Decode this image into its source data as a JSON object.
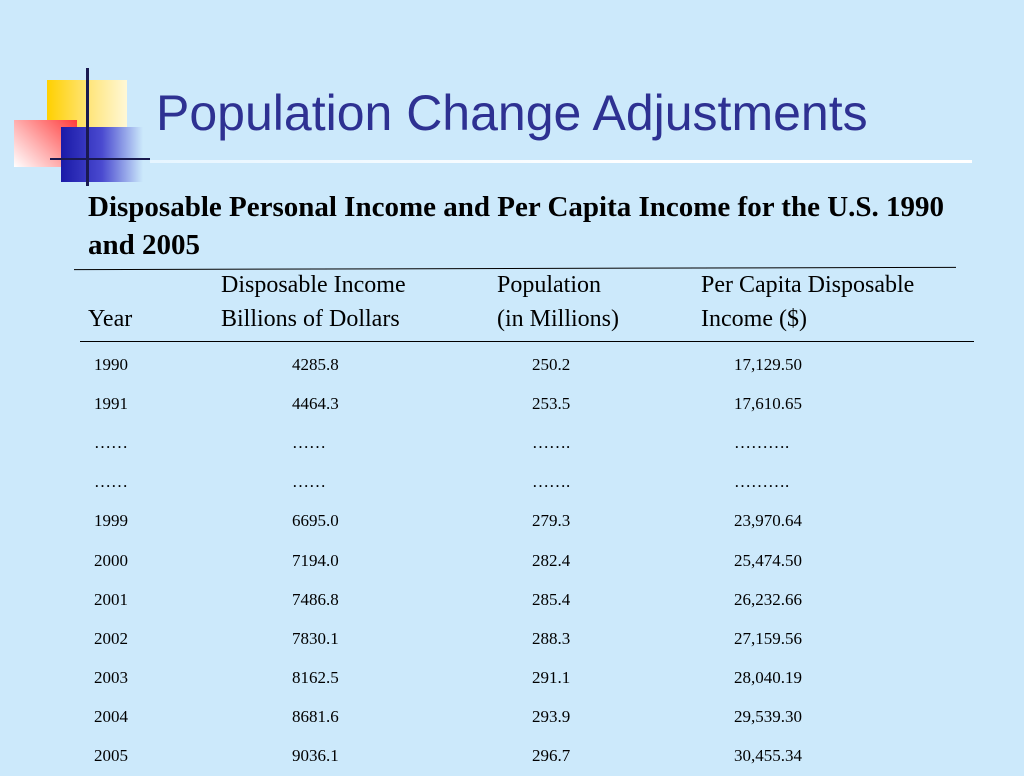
{
  "slide": {
    "title": "Population Change Adjustments",
    "subtitle": "Disposable Personal Income and Per Capita Income for the U.S. 1990 and 2005"
  },
  "table": {
    "headers": {
      "year": "Year",
      "income_line1": "Disposable Income",
      "income_line2": "Billions of Dollars",
      "population_line1": "Population",
      "population_line2": "(in Millions)",
      "per_capita_line1": "Per Capita Disposable",
      "per_capita_line2": "Income ($)"
    },
    "rows": [
      {
        "year": "1990",
        "income": "4285.8",
        "population": "250.2",
        "per_capita": "17,129.50"
      },
      {
        "year": "1991",
        "income": "4464.3",
        "population": "253.5",
        "per_capita": "17,610.65"
      },
      {
        "year": "……",
        "income": "……",
        "population": "…….",
        "per_capita": "………."
      },
      {
        "year": "……",
        "income": "……",
        "population": "…….",
        "per_capita": "………."
      },
      {
        "year": "1999",
        "income": "6695.0",
        "population": "279.3",
        "per_capita": "23,970.64"
      },
      {
        "year": "2000",
        "income": "7194.0",
        "population": "282.4",
        "per_capita": "25,474.50"
      },
      {
        "year": "2001",
        "income": "7486.8",
        "population": "285.4",
        "per_capita": "26,232.66"
      },
      {
        "year": "2002",
        "income": "7830.1",
        "population": "288.3",
        "per_capita": "27,159.56"
      },
      {
        "year": "2003",
        "income": "8162.5",
        "population": "291.1",
        "per_capita": "28,040.19"
      },
      {
        "year": "2004",
        "income": "8681.6",
        "population": "293.9",
        "per_capita": "29,539.30"
      },
      {
        "year": "2005",
        "income": "9036.1",
        "population": "296.7",
        "per_capita": "30,455.34"
      }
    ]
  }
}
